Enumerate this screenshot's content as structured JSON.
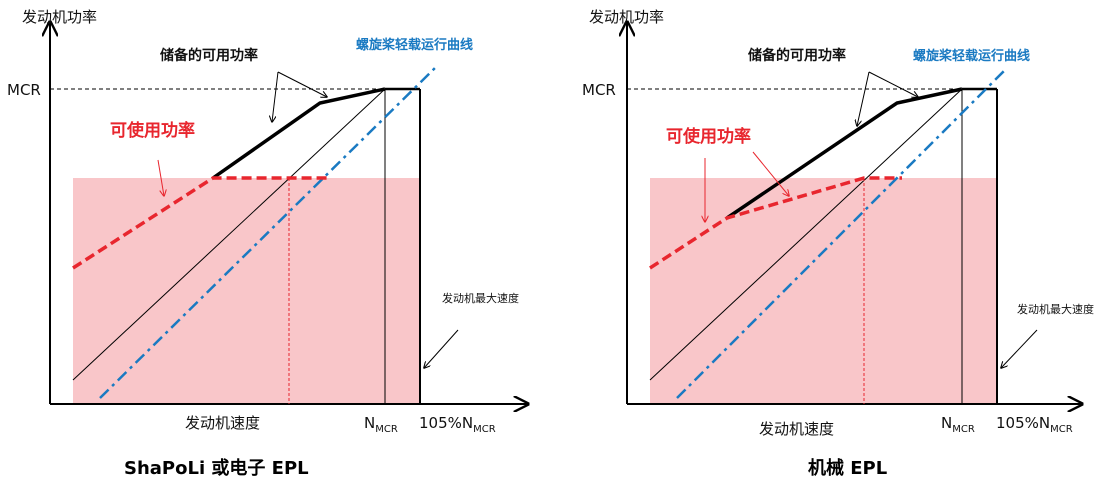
{
  "colors": {
    "axis": "#000000",
    "available_power": "#e8262e",
    "reserve_power": "#000000",
    "propeller_curve": "#1a7ac2",
    "fill_region": "#f9c6c9"
  },
  "panels": [
    {
      "id": "left",
      "y_axis_label": "发动机功率",
      "x_axis_label": "发动机速度",
      "mcr_label": "MCR",
      "nmcr_main": "N",
      "nmcr_sub": "MCR",
      "n105_main": "105%N",
      "n105_sub": "MCR",
      "reserve_label": "储备的可用功率",
      "available_label": "可使用功率",
      "propeller_label": "螺旋桨轻载运行曲线",
      "max_speed_label": "发动机最大速度",
      "caption": "ShaPoLi 或电子 EPL"
    },
    {
      "id": "right",
      "y_axis_label": "发动机功率",
      "x_axis_label": "发动机速度",
      "mcr_label": "MCR",
      "nmcr_main": "N",
      "nmcr_sub": "MCR",
      "n105_main": "105%N",
      "n105_sub": "MCR",
      "reserve_label": "储备的可用功率",
      "available_label": "可使用功率",
      "propeller_label": "螺旋桨轻载运行曲线",
      "max_speed_label": "发动机最大速度",
      "caption": "机械 EPL"
    }
  ]
}
